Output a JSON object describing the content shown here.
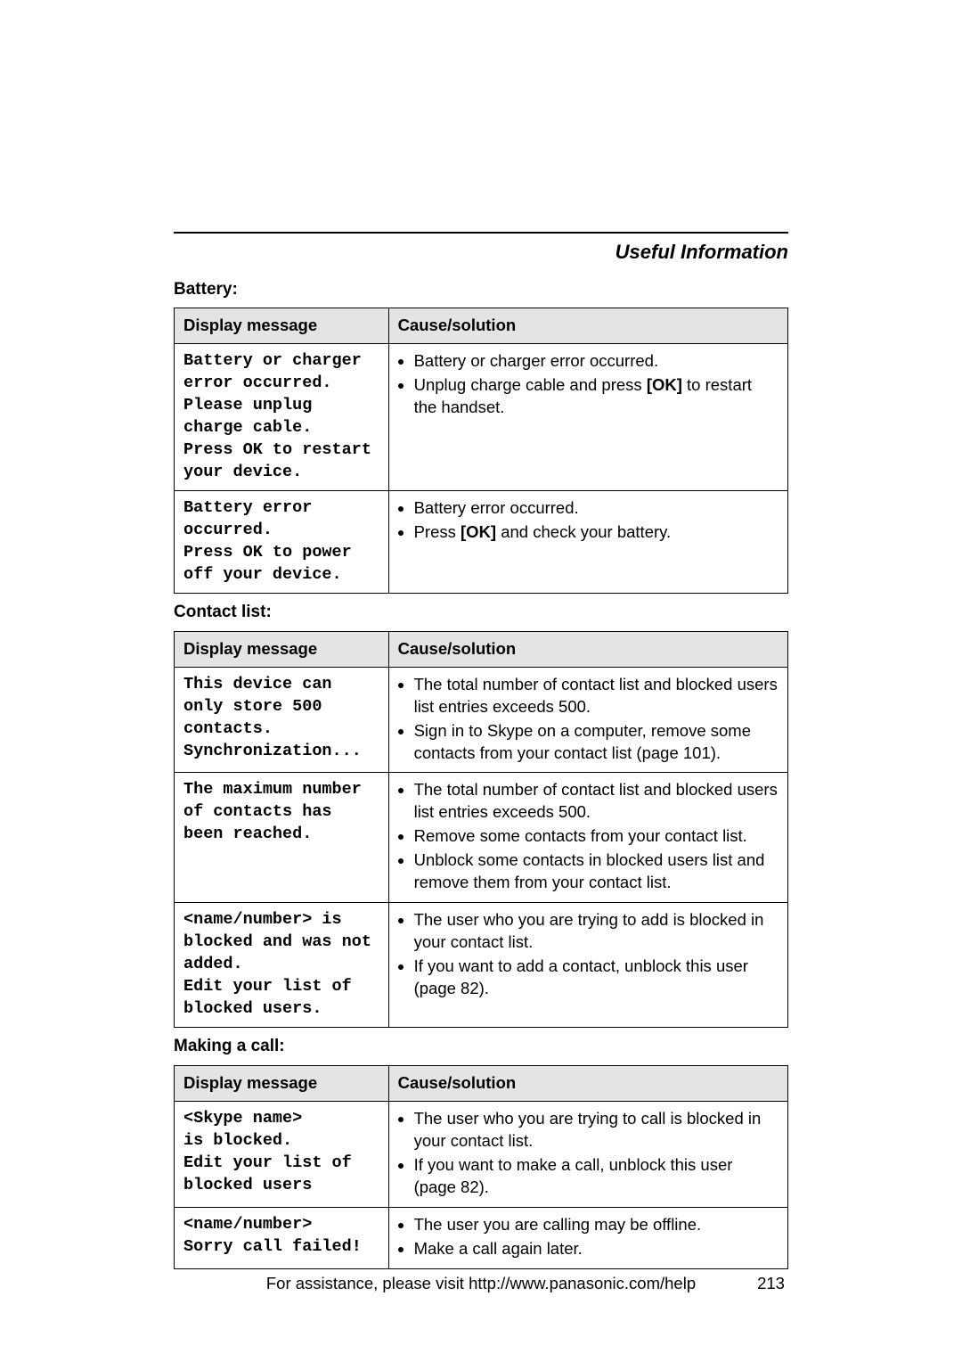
{
  "header": {
    "section_title": "Useful Information"
  },
  "colors": {
    "header_bg": "#e4e4e4",
    "border": "#000000",
    "text": "#000000",
    "page_bg": "#ffffff"
  },
  "battery": {
    "subhead": "Battery:",
    "col_msg": "Display message",
    "col_cause": "Cause/solution",
    "rows": [
      {
        "msg_l1": "Battery or charger",
        "msg_l2": "error occurred.",
        "msg_l3": "Please unplug",
        "msg_l4": "charge cable.",
        "msg_l5": "Press OK to restart",
        "msg_l6": "your device.",
        "b1": "Battery or charger error occurred.",
        "b2a": "Unplug charge cable and press ",
        "b2_btn": "[OK]",
        "b2b": " to restart the handset."
      },
      {
        "msg_l1": "Battery error",
        "msg_l2": "occurred.",
        "msg_l3": "Press OK to power",
        "msg_l4": "off your device.",
        "b1": "Battery error occurred.",
        "b2a": "Press ",
        "b2_btn": "[OK]",
        "b2b": " and check your battery."
      }
    ]
  },
  "contacts": {
    "subhead": "Contact list:",
    "col_msg": "Display message",
    "col_cause": "Cause/solution",
    "rows": [
      {
        "msg_l1": "This device can",
        "msg_l2": "only store 500",
        "msg_l3": "contacts.",
        "msg_l4": "Synchronization...",
        "b1": "The total number of contact list and blocked users list entries exceeds 500.",
        "b2": "Sign in to Skype on a computer, remove some contacts from your contact list (page 101)."
      },
      {
        "msg_l1": "The maximum number",
        "msg_l2": "of contacts has",
        "msg_l3": "been reached.",
        "b1": "The total number of contact list and blocked users list entries exceeds 500.",
        "b2": "Remove some contacts from your contact list.",
        "b3": "Unblock some contacts in blocked users list and remove them from your contact list."
      },
      {
        "msg_l1": "<name/number> is",
        "msg_l2": "blocked and was not",
        "msg_l3": "added.",
        "msg_l4": "Edit your list of",
        "msg_l5": "blocked users.",
        "b1": "The user who you are trying to add is blocked in your contact list.",
        "b2": "If you want to add a contact, unblock this user (page 82)."
      }
    ]
  },
  "call": {
    "subhead": "Making a call:",
    "col_msg": "Display message",
    "col_cause": "Cause/solution",
    "rows": [
      {
        "msg_l1": "<Skype name>",
        "msg_l2": "is blocked.",
        "msg_l3": "Edit your list of",
        "msg_l4": "blocked users",
        "b1": "The user who you are trying to call is blocked in your contact list.",
        "b2": "If you want to make a call, unblock this user (page 82)."
      },
      {
        "msg_l1": "<name/number>",
        "msg_l2": "Sorry call failed!",
        "b1": "The user you are calling may be offline.",
        "b2": "Make a call again later."
      }
    ]
  },
  "footer": {
    "text": "For assistance, please visit http://www.panasonic.com/help",
    "page": "213"
  }
}
